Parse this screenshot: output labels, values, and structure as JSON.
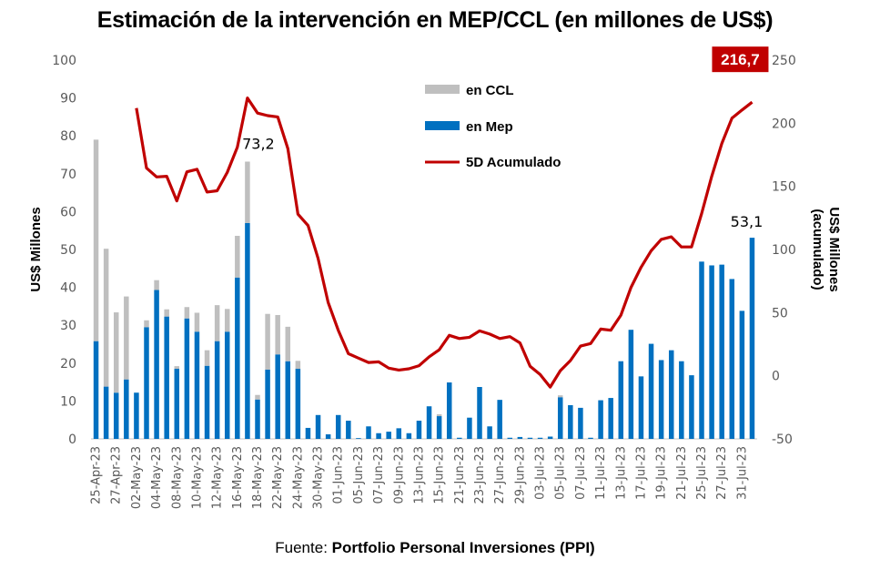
{
  "chart_data": {
    "type": "bar",
    "title": "Estimación de la intervención en MEP/CCL (en millones de US$)",
    "xlabel": "",
    "ylabel": "US$ Millones",
    "y2label_line1": "US$ Millones",
    "y2label_line2": "(acumulado)",
    "ylim": [
      0,
      100
    ],
    "y2lim": [
      -50,
      250
    ],
    "yticks": [
      0,
      10,
      20,
      30,
      40,
      50,
      60,
      70,
      80,
      90,
      100
    ],
    "y2ticks": [
      -50,
      0,
      50,
      100,
      150,
      200,
      250
    ],
    "grid": false,
    "legend_position": "top-center",
    "legend": [
      {
        "name": "en CCL",
        "color": "#bfbfbf",
        "kind": "bar"
      },
      {
        "name": "en Mep",
        "color": "#0070c0",
        "kind": "bar"
      },
      {
        "name": "5D Acumulado",
        "color": "#c00000",
        "kind": "line"
      }
    ],
    "x_tick_labels": [
      "25-Apr-23",
      "27-Apr-23",
      "02-May-23",
      "04-May-23",
      "08-May-23",
      "10-May-23",
      "12-May-23",
      "16-May-23",
      "18-May-23",
      "22-May-23",
      "24-May-23",
      "30-May-23",
      "01-Jun-23",
      "05-Jun-23",
      "07-Jun-23",
      "09-Jun-23",
      "13-Jun-23",
      "15-Jun-23",
      "21-Jun-23",
      "23-Jun-23",
      "27-Jun-23",
      "29-Jun-23",
      "03-Jul-23",
      "05-Jul-23",
      "07-Jul-23",
      "11-Jul-23",
      "13-Jul-23",
      "17-Jul-23",
      "19-Jul-23",
      "21-Jul-23",
      "25-Jul-23",
      "27-Jul-23",
      "31-Jul-23"
    ],
    "series": [
      {
        "name": "en Mep",
        "stack": "bar",
        "color": "#0070c0",
        "values": [
          25.8,
          13.8,
          12.2,
          15.7,
          12.2,
          29.5,
          39.3,
          32.3,
          18.5,
          31.8,
          28.3,
          19.3,
          25.8,
          28.3,
          42.6,
          57.0,
          10.4,
          18.3,
          22.3,
          20.5,
          18.5,
          2.9,
          6.3,
          1.2,
          6.3,
          4.8,
          0.2,
          3.3,
          1.5,
          1.9,
          2.8,
          1.5,
          4.8,
          8.6,
          6.0,
          14.9,
          0.3,
          5.6,
          13.7,
          3.3,
          10.3,
          0.3,
          0.5,
          0.3,
          0.3,
          0.6,
          11.0,
          8.9,
          8.2,
          0.3,
          10.2,
          10.8,
          20.5,
          28.8,
          16.5,
          25.1,
          20.8,
          23.4,
          20.5,
          16.8,
          46.8,
          45.8,
          46.0,
          42.2,
          33.8,
          53.1
        ]
      },
      {
        "name": "en CCL",
        "stack": "bar",
        "color": "#bfbfbf",
        "values": [
          53.2,
          36.4,
          21.2,
          21.9,
          0.0,
          1.8,
          2.6,
          1.9,
          0.7,
          3.0,
          5.0,
          4.1,
          9.5,
          6.0,
          11.0,
          16.2,
          1.2,
          14.7,
          10.4,
          9.1,
          2.1,
          0.0,
          0.0,
          0.0,
          0.0,
          0.0,
          0.0,
          0.0,
          0.0,
          0.0,
          0.0,
          0.0,
          0.0,
          0.0,
          0.5,
          0.0,
          0.0,
          0.0,
          0.0,
          0.0,
          0.0,
          0.0,
          0.0,
          0.0,
          0.0,
          0.0,
          0.5,
          0.0,
          0.0,
          0.0,
          0.0,
          0.0,
          0.0,
          0.0,
          0.0,
          0.0,
          0.0,
          0.0,
          0.0,
          0.0,
          0.0,
          0.0,
          0.0,
          0.0,
          0.0,
          0.0
        ]
      },
      {
        "name": "5D Acumulado",
        "axis": "secondary",
        "color": "#c00000",
        "values": [
          null,
          null,
          null,
          null,
          212.0,
          164.5,
          157.5,
          158.0,
          138.5,
          161.5,
          163.5,
          145.5,
          146.5,
          161.0,
          181.0,
          220.0,
          208.0,
          206.0,
          205.0,
          180.0,
          128.0,
          119.0,
          93.0,
          58.0,
          36.0,
          17.5,
          14.0,
          10.5,
          11.0,
          6.0,
          4.5,
          5.5,
          8.0,
          15.0,
          20.5,
          32.0,
          29.5,
          30.5,
          35.5,
          33.0,
          29.5,
          31.0,
          26.0,
          7.5,
          1.0,
          -9.0,
          4.0,
          12.0,
          23.5,
          25.5,
          37.0,
          36.0,
          48.0,
          70.0,
          86.0,
          99.0,
          108.0,
          110.0,
          102.0,
          102.0,
          128.5,
          158.0,
          184.0,
          204.0,
          210.5,
          216.7
        ]
      }
    ],
    "annotations": [
      {
        "text": "73,2",
        "series": "total_bar",
        "index": 15
      },
      {
        "text": "53,1",
        "series": "en Mep",
        "index": 65
      },
      {
        "text": "216,7",
        "series": "5D Acumulado",
        "index": 65,
        "style": "badge",
        "badge_color": "#c00000"
      }
    ]
  },
  "source": {
    "prefix": "Fuente: ",
    "name": "Portfolio Personal Inversiones (PPI)"
  }
}
